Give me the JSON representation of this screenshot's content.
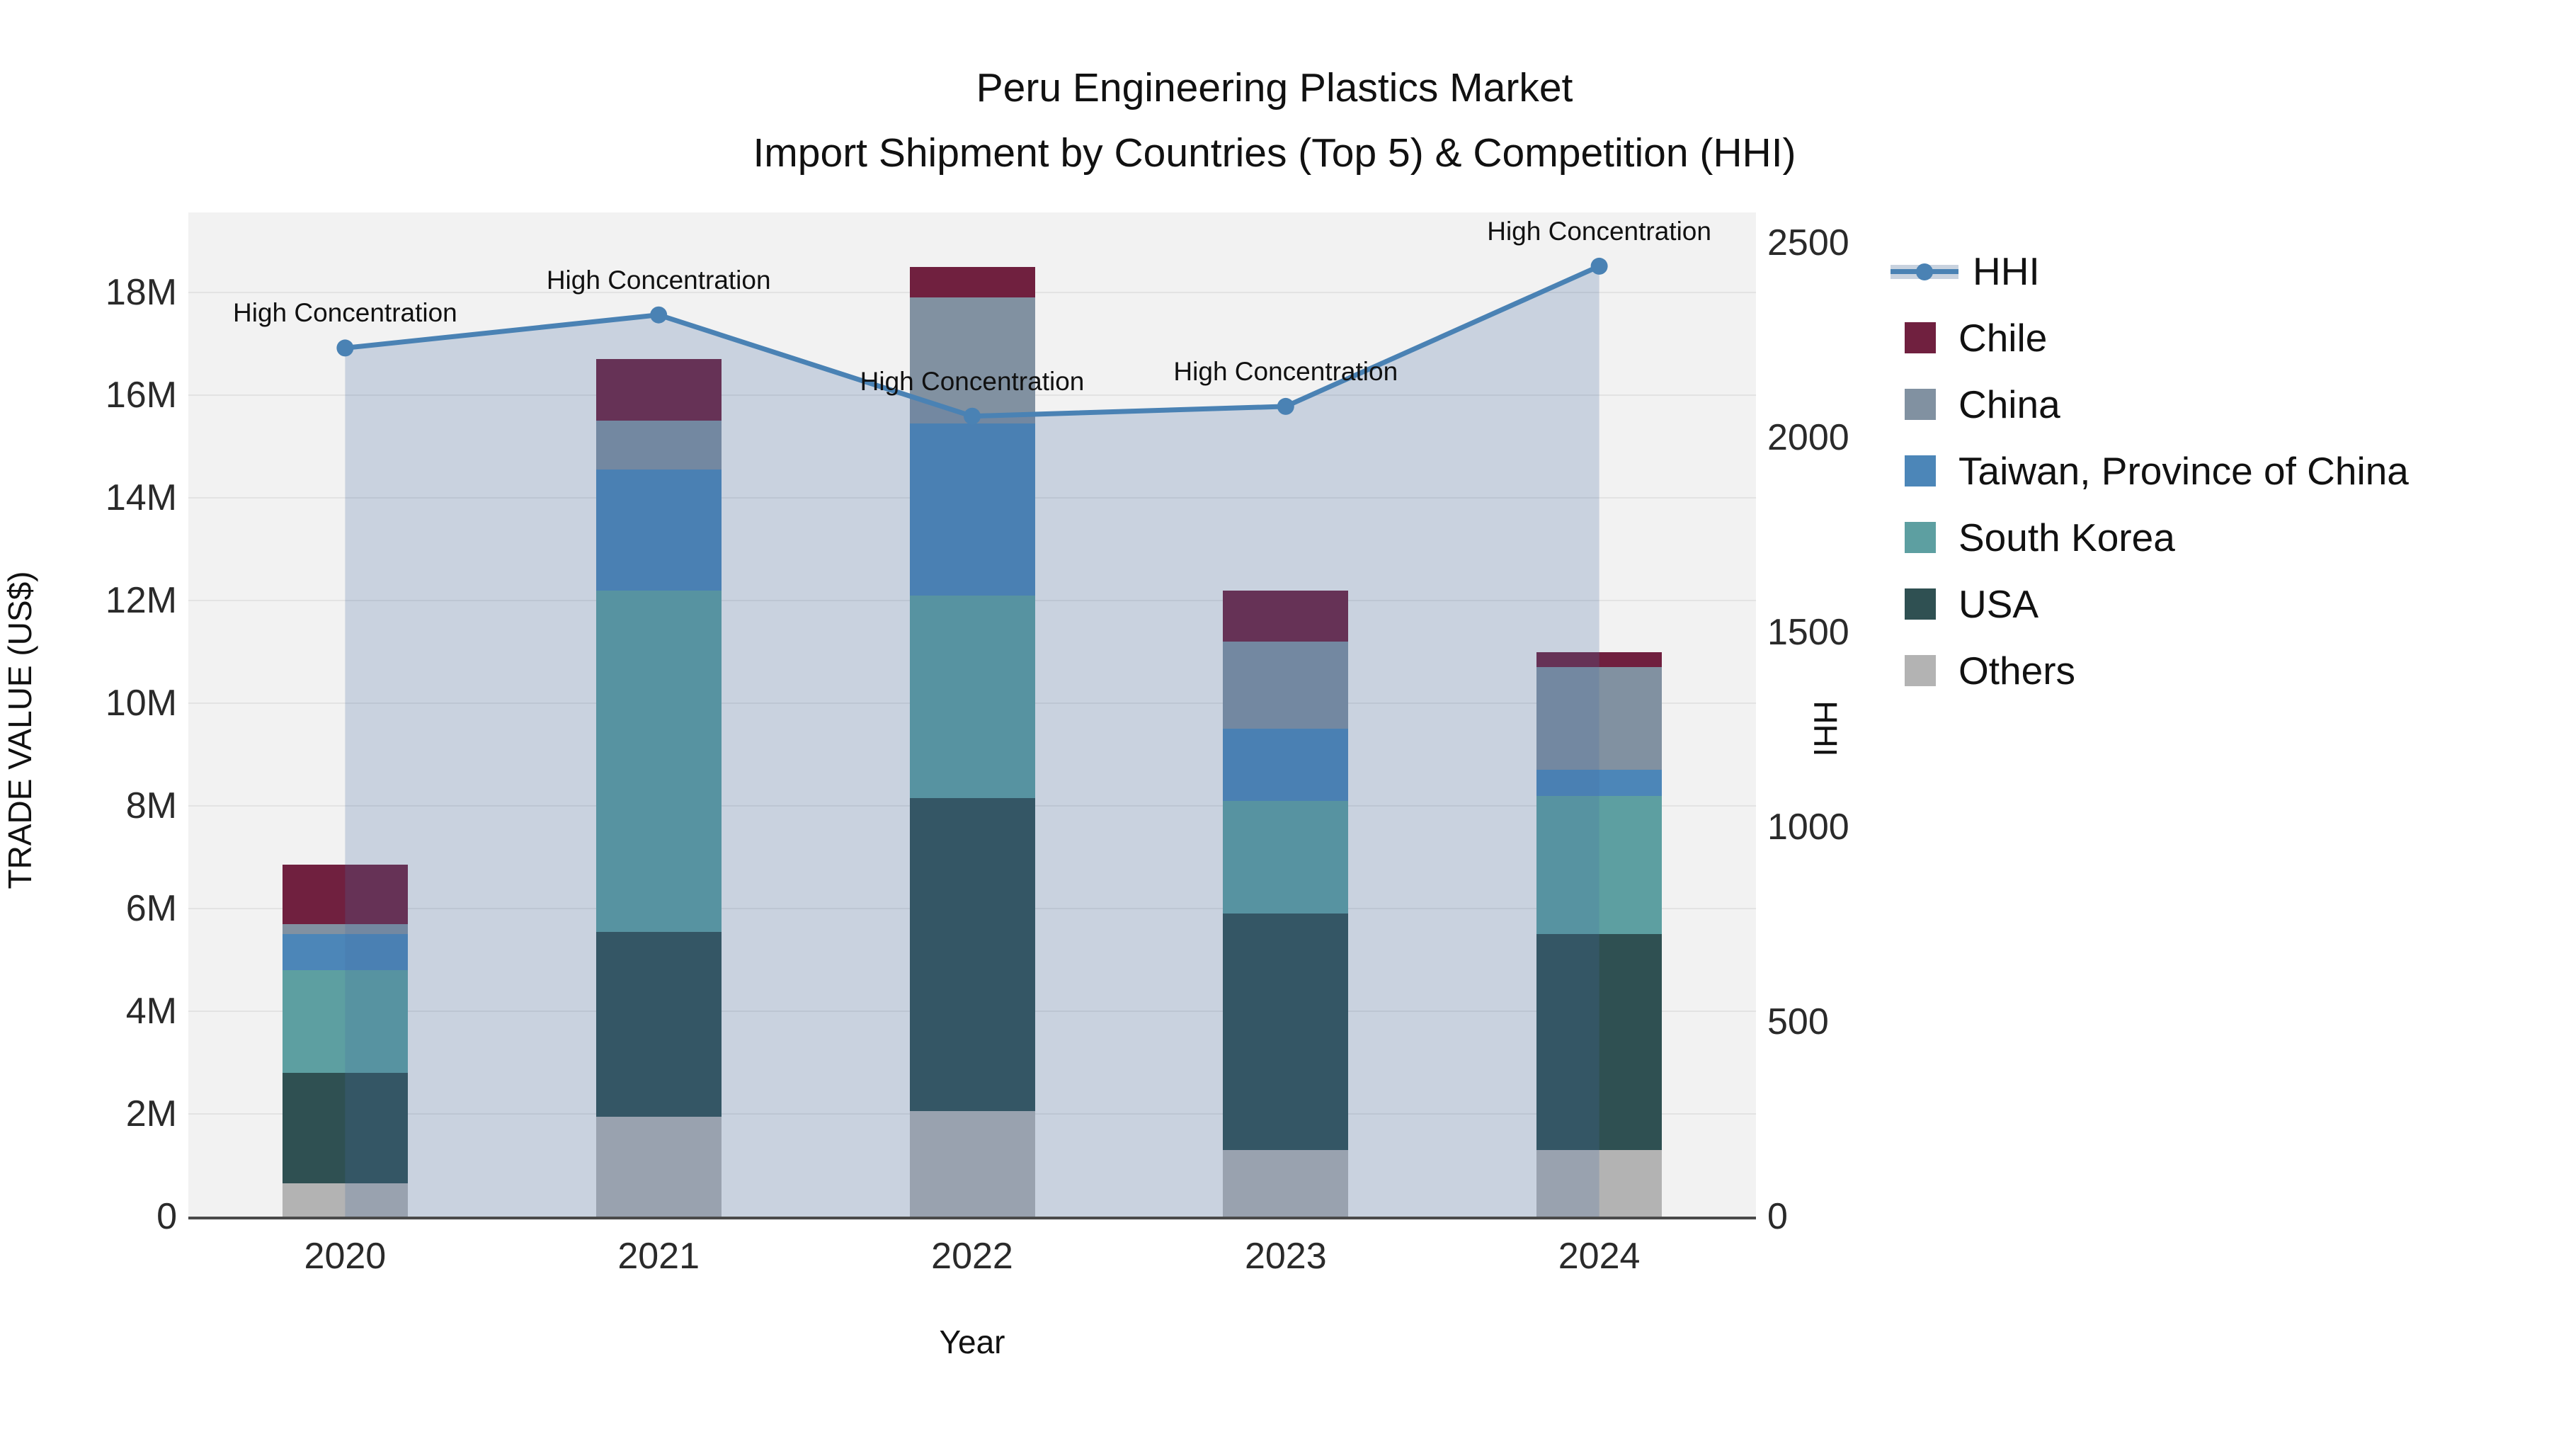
{
  "title": {
    "line1": "Peru Engineering Plastics Market",
    "line2": "Import Shipment by Countries (Top 5) & Competition (HHI)"
  },
  "axes": {
    "y_left_label": "TRADE VALUE (US$)",
    "y_right_label": "HHI",
    "x_label": "Year"
  },
  "annotation_text": "High Concentration",
  "legend": {
    "items": [
      "HHI",
      "Chile",
      "China",
      "Taiwan, Province of China",
      "South Korea",
      "USA",
      "Others"
    ]
  },
  "colors": {
    "hhi_line": "#4a82b4",
    "hhi_area": "rgba(70,110,165,0.24)",
    "hhi_area_solid": "#c8d2df",
    "chile": "#70203f",
    "china": "#8191a1",
    "taiwan": "#4c86b8",
    "south_korea": "#5d9fa1",
    "usa": "#2f5052",
    "others": "#b3b3b3",
    "plot_bg": "#f2f2f2",
    "grid": "#e3e3e3",
    "axis_line": "#4a4a4a"
  },
  "chart_data": {
    "type": "combo",
    "subtype": [
      "stacked-bar",
      "line"
    ],
    "title": "Peru Engineering Plastics Market — Import Shipment by Countries (Top 5) & Competition (HHI)",
    "x": [
      "2020",
      "2021",
      "2022",
      "2023",
      "2024"
    ],
    "bar_value_unit": "million US$",
    "stack_order_bottom_to_top": [
      "Others",
      "USA",
      "South Korea",
      "Taiwan, Province of China",
      "China",
      "Chile"
    ],
    "series": [
      {
        "name": "Others",
        "color": "#b3b3b3",
        "values": [
          0.65,
          1.95,
          2.05,
          1.3,
          1.3
        ]
      },
      {
        "name": "USA",
        "color": "#2f5052",
        "values": [
          2.15,
          3.6,
          6.1,
          4.6,
          4.2
        ]
      },
      {
        "name": "South Korea",
        "color": "#5d9fa1",
        "values": [
          2.0,
          6.65,
          3.95,
          2.2,
          2.7
        ]
      },
      {
        "name": "Taiwan, Province of China",
        "color": "#4c86b8",
        "values": [
          0.7,
          2.35,
          3.35,
          1.4,
          0.5
        ]
      },
      {
        "name": "China",
        "color": "#8191a1",
        "values": [
          0.2,
          0.95,
          2.45,
          1.7,
          2.0
        ]
      },
      {
        "name": "Chile",
        "color": "#70203f",
        "values": [
          1.15,
          1.2,
          0.6,
          1.0,
          0.3
        ]
      }
    ],
    "bar_totals": [
      6.85,
      16.7,
      18.5,
      12.2,
      11.0
    ],
    "hhi": {
      "name": "HHI",
      "color": "#4a82b4",
      "values": [
        2230,
        2315,
        2055,
        2080,
        2440
      ],
      "annotations": [
        "High Concentration",
        "High Concentration",
        "High Concentration",
        "High Concentration",
        "High Concentration"
      ]
    },
    "y_left": {
      "label": "TRADE VALUE (US$)",
      "tick_labels": [
        "0",
        "2M",
        "4M",
        "6M",
        "8M",
        "10M",
        "12M",
        "14M",
        "16M",
        "18M"
      ],
      "tick_values": [
        0,
        2,
        4,
        6,
        8,
        10,
        12,
        14,
        16,
        18
      ],
      "range": [
        0,
        19.56
      ]
    },
    "y_right": {
      "label": "HHI",
      "tick_labels": [
        "0",
        "500",
        "1000",
        "1500",
        "2000",
        "2500"
      ],
      "tick_values": [
        0,
        500,
        1000,
        1500,
        2000,
        2500
      ],
      "range": [
        0,
        2578
      ]
    },
    "x_axis": {
      "label": "Year",
      "tick_labels": [
        "2020",
        "2021",
        "2022",
        "2023",
        "2024"
      ]
    },
    "grid": "horizontal, every 2M",
    "legend_position": "right"
  }
}
